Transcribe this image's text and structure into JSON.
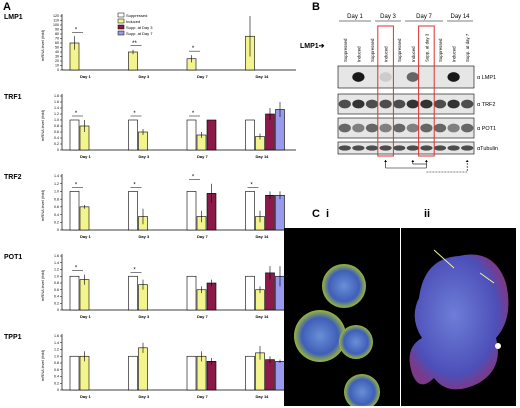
{
  "panels": {
    "A": {
      "letter": "A",
      "legend": [
        "Suppressed",
        "Induced",
        "Supp. at Day 3",
        "Supp. at Day 7"
      ],
      "legend_colors": [
        "#ffffff",
        "#f4f48e",
        "#8b1a4a",
        "#9999ee"
      ],
      "ylabel": "mRNA level (fold)",
      "days": [
        "Day 1",
        "Day 3",
        "Day 7",
        "Day 14"
      ]
    },
    "B": {
      "letter": "B",
      "days": [
        "Day 1",
        "Day 3",
        "Day 7",
        "Day 14"
      ],
      "lanes": [
        "Suppressed",
        "Induced",
        "Suppressed",
        "Induced",
        "Suppressed",
        "Induced",
        "Supp. at day 3",
        "Suppressed",
        "Induced",
        "Supp. at day 7"
      ],
      "arrow_label": "LMP1",
      "rows": [
        "α LMP1",
        "α TRF2",
        "α POT1",
        "αTubulin"
      ]
    },
    "C": {
      "letter": "C",
      "sub_i": "i",
      "sub_ii": "ii"
    }
  },
  "chart_data": [
    {
      "type": "bar",
      "title": "LMP1",
      "ylim": [
        0,
        120
      ],
      "yticks": [
        "0",
        "10",
        "20",
        "30",
        "40",
        "50",
        "60",
        "70",
        "80",
        "90",
        "100",
        "110",
        "120"
      ],
      "categories": [
        "Day 1",
        "Day 3",
        "Day 7",
        "Day 14"
      ],
      "series": [
        {
          "name": "Induced",
          "values": [
            60,
            40,
            25,
            75
          ],
          "errors": [
            15,
            5,
            8,
            45
          ]
        }
      ],
      "annotations": [
        "*",
        "**",
        "*"
      ]
    },
    {
      "type": "bar",
      "title": "TRF1",
      "ylim": [
        0,
        1.8
      ],
      "yticks": [
        "0",
        "0.2",
        "0.4",
        "0.6",
        "0.8",
        "1.0",
        "1.2",
        "1.4",
        "1.6",
        "1.8"
      ],
      "categories": [
        "Day 1",
        "Day 3",
        "Day 7",
        "Day 14"
      ],
      "series": [
        {
          "name": "Suppressed",
          "values": [
            1.0,
            1.0,
            1.0,
            1.0
          ],
          "errors": [
            0,
            0,
            0,
            0
          ]
        },
        {
          "name": "Induced",
          "values": [
            0.8,
            0.6,
            0.5,
            0.45
          ],
          "errors": [
            0.2,
            0.1,
            0.1,
            0.1
          ]
        },
        {
          "name": "Supp. at Day 3",
          "values": [
            null,
            null,
            1.0,
            1.2
          ],
          "errors": [
            0,
            0,
            0,
            0.2
          ]
        },
        {
          "name": "Supp. at Day 7",
          "values": [
            null,
            null,
            null,
            1.35
          ],
          "errors": [
            0,
            0,
            0,
            0.25
          ]
        }
      ],
      "annotations": [
        "*",
        "*",
        "*"
      ]
    },
    {
      "type": "bar",
      "title": "TRF2",
      "ylim": [
        0,
        1.4
      ],
      "yticks": [
        "0",
        "0.2",
        "0.4",
        "0.6",
        "0.8",
        "1.0",
        "1.2",
        "1.4"
      ],
      "categories": [
        "Day 1",
        "Day 3",
        "Day 7",
        "Day 14"
      ],
      "series": [
        {
          "name": "Suppressed",
          "values": [
            1.0,
            1.0,
            1.0,
            1.0
          ],
          "errors": [
            0,
            0,
            0,
            0
          ]
        },
        {
          "name": "Induced",
          "values": [
            0.6,
            0.35,
            0.35,
            0.35
          ],
          "errors": [
            0.05,
            0.2,
            0.15,
            0.15
          ]
        },
        {
          "name": "Supp. at Day 3",
          "values": [
            null,
            null,
            0.95,
            0.9
          ],
          "errors": [
            0,
            0,
            0.25,
            0.1
          ]
        },
        {
          "name": "Supp. at Day 7",
          "values": [
            null,
            null,
            null,
            0.9
          ],
          "errors": [
            0,
            0,
            0,
            0.1
          ]
        }
      ],
      "annotations": [
        "*",
        "*",
        "*",
        "*"
      ]
    },
    {
      "type": "bar",
      "title": "POT1",
      "ylim": [
        0,
        1.6
      ],
      "yticks": [
        "0",
        "0.2",
        "0.4",
        "0.6",
        "0.8",
        "1.0",
        "1.2",
        "1.4",
        "1.6"
      ],
      "categories": [
        "Day 1",
        "Day 3",
        "Day 7",
        "Day 14"
      ],
      "series": [
        {
          "name": "Suppressed",
          "values": [
            1.0,
            1.0,
            1.0,
            1.0
          ],
          "errors": [
            0,
            0,
            0,
            0
          ]
        },
        {
          "name": "Induced",
          "values": [
            0.9,
            0.75,
            0.6,
            0.6
          ],
          "errors": [
            0.15,
            0.15,
            0.1,
            0.1
          ]
        },
        {
          "name": "Supp. at Day 3",
          "values": [
            null,
            null,
            0.8,
            1.1
          ],
          "errors": [
            0,
            0,
            0.1,
            0.2
          ]
        },
        {
          "name": "Supp. at Day 7",
          "values": [
            null,
            null,
            null,
            1.0
          ],
          "errors": [
            0,
            0,
            0,
            0.3
          ]
        }
      ],
      "annotations": [
        "*",
        "*"
      ]
    },
    {
      "type": "bar",
      "title": "TPP1",
      "ylim": [
        0,
        1.6
      ],
      "yticks": [
        "0",
        "0.2",
        "0.4",
        "0.6",
        "0.8",
        "1.0",
        "1.2",
        "1.4",
        "1.6"
      ],
      "categories": [
        "Day 1",
        "Day 3",
        "Day 7",
        "Day 14"
      ],
      "series": [
        {
          "name": "Suppressed",
          "values": [
            1.0,
            1.0,
            1.0,
            1.0
          ],
          "errors": [
            0,
            0,
            0,
            0
          ]
        },
        {
          "name": "Induced",
          "values": [
            1.0,
            1.25,
            1.0,
            1.1
          ],
          "errors": [
            0.15,
            0.15,
            0.15,
            0.2
          ]
        },
        {
          "name": "Supp. at Day 3",
          "values": [
            null,
            null,
            0.85,
            0.9
          ],
          "errors": [
            0,
            0,
            0.1,
            0.1
          ]
        },
        {
          "name": "Supp. at Day 7",
          "values": [
            null,
            null,
            null,
            0.85
          ],
          "errors": [
            0,
            0,
            0,
            0.05
          ]
        }
      ],
      "annotations": []
    }
  ]
}
